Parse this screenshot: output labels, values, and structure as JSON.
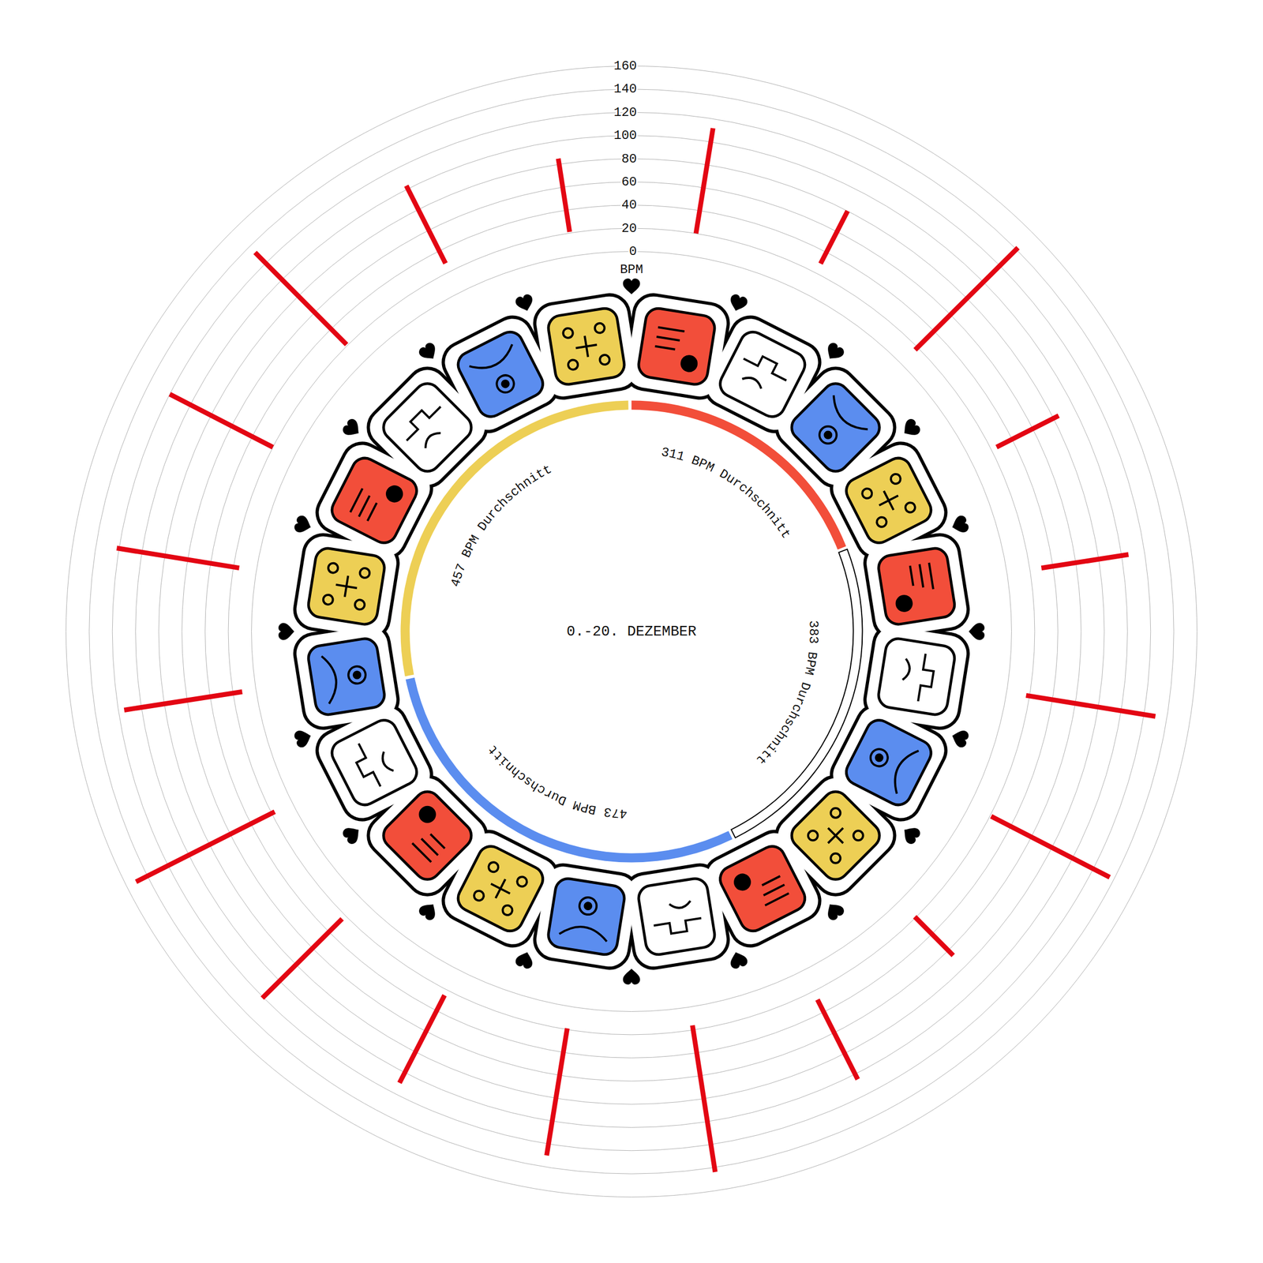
{
  "chart_data": {
    "type": "radial_bar",
    "title": "0.-20. DEZEMBER",
    "categories": [
      null,
      null,
      null,
      null,
      null,
      null,
      null,
      null,
      null,
      null,
      null,
      null,
      null,
      null,
      null,
      null,
      null,
      null,
      null,
      null
    ],
    "values": [
      [
        21,
        85
      ],
      [
        20,
        112
      ],
      [
        29,
        80
      ],
      [
        17,
        142
      ],
      [
        25,
        85
      ],
      [
        30,
        106
      ],
      [
        17,
        130
      ],
      [
        21,
        136
      ],
      [
        19,
        66
      ],
      [
        28,
        105
      ],
      [
        16,
        144
      ],
      [
        19,
        130
      ],
      [
        25,
        110
      ],
      [
        24,
        121
      ],
      [
        17,
        151
      ],
      [
        12,
        115
      ],
      [
        15,
        122
      ],
      [
        20,
        120
      ],
      [
        21,
        133
      ],
      [
        28,
        103
      ]
    ],
    "color": "#e30613",
    "ylim": [
      0,
      160
    ],
    "yticks": [
      0,
      20,
      40,
      60,
      80,
      100,
      120,
      140,
      160
    ],
    "ylabel": "BPM",
    "grid": true,
    "averages": {
      "type": "pie",
      "values": [
        311,
        383,
        473,
        457
      ],
      "value_labels": [
        "311 BPM Durchschnitt",
        "383 BPM Durchschnitt",
        "473 BPM Durchschnitt",
        "457 BPM Durchschnitt"
      ],
      "colors": [
        "#f24e3a",
        "#ffffff",
        "#5b8def",
        "#edcf55"
      ]
    }
  }
}
